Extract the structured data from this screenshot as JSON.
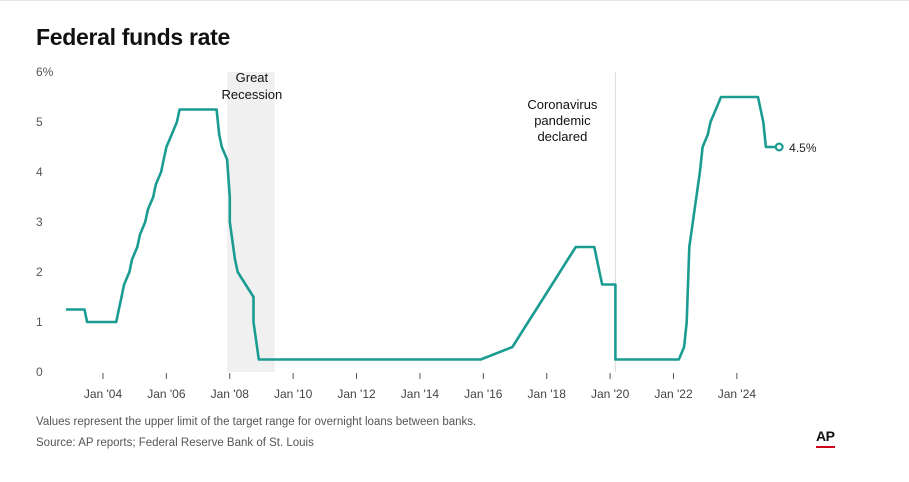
{
  "title": "Federal funds rate",
  "notes": {
    "definition": "Values represent the upper limit of the target range for overnight loans between banks.",
    "source": "Source: AP reports; Federal Reserve Bank of St. Louis"
  },
  "logo": "AP",
  "colors": {
    "line": "#1a9c93",
    "recession": "#f0f0f0",
    "logo_accent": "#d0021b"
  },
  "chart_data": {
    "type": "line",
    "title": "Federal funds rate",
    "xlabel": "",
    "ylabel": "",
    "ylim": [
      0,
      6
    ],
    "xlim": [
      "2002-11",
      "2025-11"
    ],
    "y_ticks": [
      "0",
      "1",
      "2",
      "3",
      "4",
      "5",
      "6%"
    ],
    "y_tick_values": [
      0,
      1,
      2,
      3,
      4,
      5,
      6
    ],
    "x_ticks": [
      "Jan '04",
      "Jan '06",
      "Jan '08",
      "Jan '10",
      "Jan '12",
      "Jan '14",
      "Jan '16",
      "Jan '18",
      "Jan '20",
      "Jan '22",
      "Jan '24"
    ],
    "x_tick_dates": [
      "2004-01",
      "2006-01",
      "2008-01",
      "2010-01",
      "2012-01",
      "2014-01",
      "2016-01",
      "2018-01",
      "2020-01",
      "2022-01",
      "2024-01"
    ],
    "grid": false,
    "shaded_region": {
      "label": "Great Recession",
      "start": "2007-12",
      "end": "2009-06"
    },
    "annotations": [
      {
        "label": "Coronavirus pandemic declared",
        "date": "2020-03"
      }
    ],
    "end_label": "4.5%",
    "x": [
      "2002-11",
      "2003-06",
      "2003-07",
      "2004-06",
      "2004-08",
      "2004-09",
      "2004-11",
      "2004-12",
      "2005-02",
      "2005-03",
      "2005-05",
      "2005-06",
      "2005-08",
      "2005-09",
      "2005-11",
      "2005-12",
      "2006-01",
      "2006-03",
      "2006-05",
      "2006-06",
      "2007-08",
      "2007-09",
      "2007-10",
      "2007-12",
      "2008-01",
      "2008-01",
      "2008-03",
      "2008-04",
      "2008-10",
      "2008-10",
      "2008-12",
      "2015-12",
      "2016-12",
      "2017-03",
      "2017-06",
      "2017-12",
      "2018-03",
      "2018-06",
      "2018-09",
      "2018-12",
      "2019-07",
      "2019-09",
      "2019-10",
      "2020-03",
      "2020-03",
      "2022-03",
      "2022-05",
      "2022-06",
      "2022-07",
      "2022-09",
      "2022-11",
      "2022-12",
      "2023-02",
      "2023-03",
      "2023-05",
      "2023-07",
      "2024-09",
      "2024-11",
      "2024-12",
      "2025-05"
    ],
    "y": [
      1.25,
      1.25,
      1.0,
      1.0,
      1.5,
      1.75,
      2.0,
      2.25,
      2.5,
      2.75,
      3.0,
      3.25,
      3.5,
      3.75,
      4.0,
      4.25,
      4.5,
      4.75,
      5.0,
      5.25,
      5.25,
      4.75,
      4.5,
      4.25,
      3.5,
      3.0,
      2.25,
      2.0,
      1.5,
      1.0,
      0.25,
      0.25,
      0.5,
      0.75,
      1.0,
      1.5,
      1.75,
      2.0,
      2.25,
      2.5,
      2.5,
      2.0,
      1.75,
      1.75,
      0.25,
      0.25,
      0.5,
      1.0,
      2.5,
      3.25,
      4.0,
      4.5,
      4.75,
      5.0,
      5.25,
      5.5,
      5.5,
      5.0,
      4.5,
      4.5
    ]
  }
}
